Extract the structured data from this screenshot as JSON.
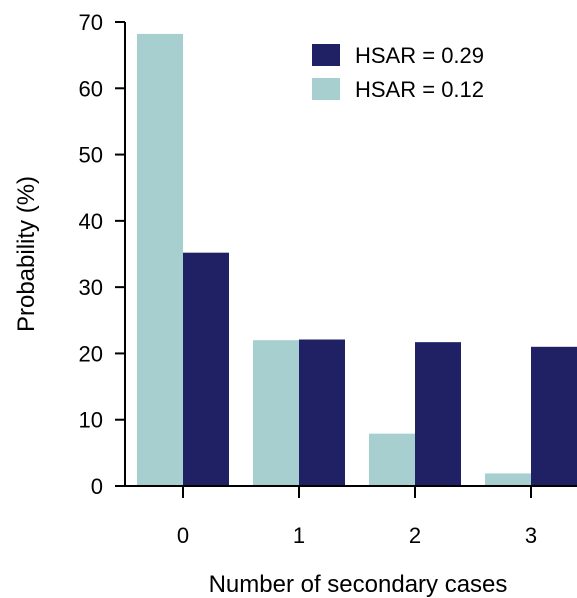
{
  "chart_data": {
    "type": "bar",
    "categories": [
      "0",
      "1",
      "2",
      "3"
    ],
    "series": [
      {
        "name": "HSAR = 0.12",
        "color": "#a8cfd0",
        "values": [
          68.2,
          22.0,
          7.9,
          1.9
        ]
      },
      {
        "name": "HSAR = 0.29",
        "color": "#1f2164",
        "values": [
          35.2,
          22.1,
          21.7,
          21.0
        ]
      }
    ],
    "xlabel": "Number of secondary cases",
    "ylabel": "Probability (%)",
    "ylim": [
      0,
      70
    ],
    "yticks": [
      0,
      10,
      20,
      30,
      40,
      50,
      60,
      70
    ],
    "grid": false,
    "legend_position": "top-right",
    "legend_order": [
      "HSAR = 0.29",
      "HSAR = 0.12"
    ]
  }
}
